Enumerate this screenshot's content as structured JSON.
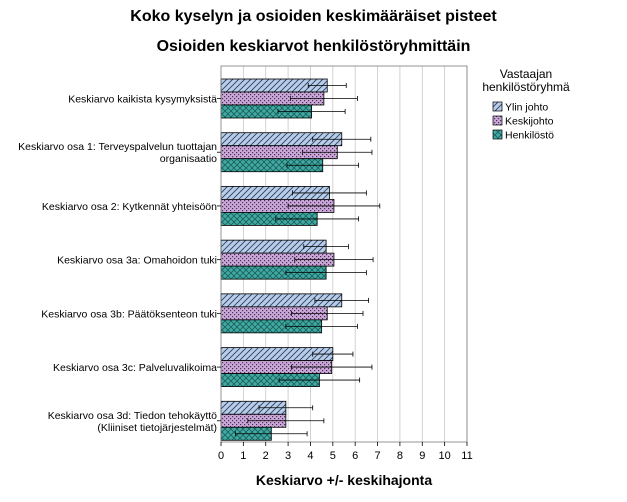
{
  "title": "Koko kyselyn ja osioiden keskimääräiset pisteet",
  "subtitle": "Osioiden keskiarvot henkilöstöryhmittäin",
  "chart_data": {
    "type": "bar",
    "orientation": "horizontal",
    "title": "Koko kyselyn ja osioiden keskimääräiset pisteet",
    "subtitle": "Osioiden keskiarvot henkilöstöryhmittäin",
    "xlabel": "Keskiarvo +/- keskihajonta",
    "ylabel": "",
    "xlim": [
      0,
      11
    ],
    "xticks": [
      "0",
      "1",
      "2",
      "3",
      "4",
      "5",
      "6",
      "7",
      "8",
      "9",
      "10",
      "11"
    ],
    "grid": "vertical",
    "legend": {
      "title_lines": [
        "Vastaajan",
        "henkilöstöryhmä"
      ],
      "position": "right"
    },
    "categories": [
      [
        "Keskiarvo kaikista kysymyksistä"
      ],
      [
        "Keskiarvo osa 1: Terveyspalvelun tuottajan",
        "organisaatio"
      ],
      [
        "Keskiarvo osa 2: Kytkennät yhteisöön"
      ],
      [
        "Keskiarvo osa 3a: Omahoidon tuki"
      ],
      [
        "Keskiarvo osa 3b: Päätöksenteon tuki"
      ],
      [
        "Keskiarvo osa 3c: Palveluvalikoima"
      ],
      [
        "Keskiarvo osa 3d: Tiedon tehokäyttö",
        "(Kliiniset tietojärjestelmät)"
      ]
    ],
    "series": [
      {
        "name": "Ylin johto",
        "color": "#b8cde6",
        "pattern": "diagonal",
        "values": [
          4.75,
          5.4,
          4.85,
          4.7,
          5.4,
          5.0,
          2.9
        ],
        "sd": [
          0.85,
          1.3,
          1.65,
          1.0,
          1.2,
          0.9,
          1.2
        ]
      },
      {
        "name": "Keskijohto",
        "color": "#c9a7d6",
        "pattern": "dots",
        "values": [
          4.6,
          5.2,
          5.05,
          5.05,
          4.75,
          4.95,
          2.9
        ],
        "sd": [
          1.5,
          1.55,
          2.05,
          1.75,
          1.6,
          1.8,
          1.7
        ]
      },
      {
        "name": "Henkilöstö",
        "color": "#3fa9a2",
        "pattern": "crosshatch",
        "values": [
          4.05,
          4.55,
          4.3,
          4.7,
          4.5,
          4.4,
          2.25
        ],
        "sd": [
          1.5,
          1.6,
          1.85,
          1.8,
          1.6,
          1.8,
          1.6
        ]
      }
    ]
  }
}
